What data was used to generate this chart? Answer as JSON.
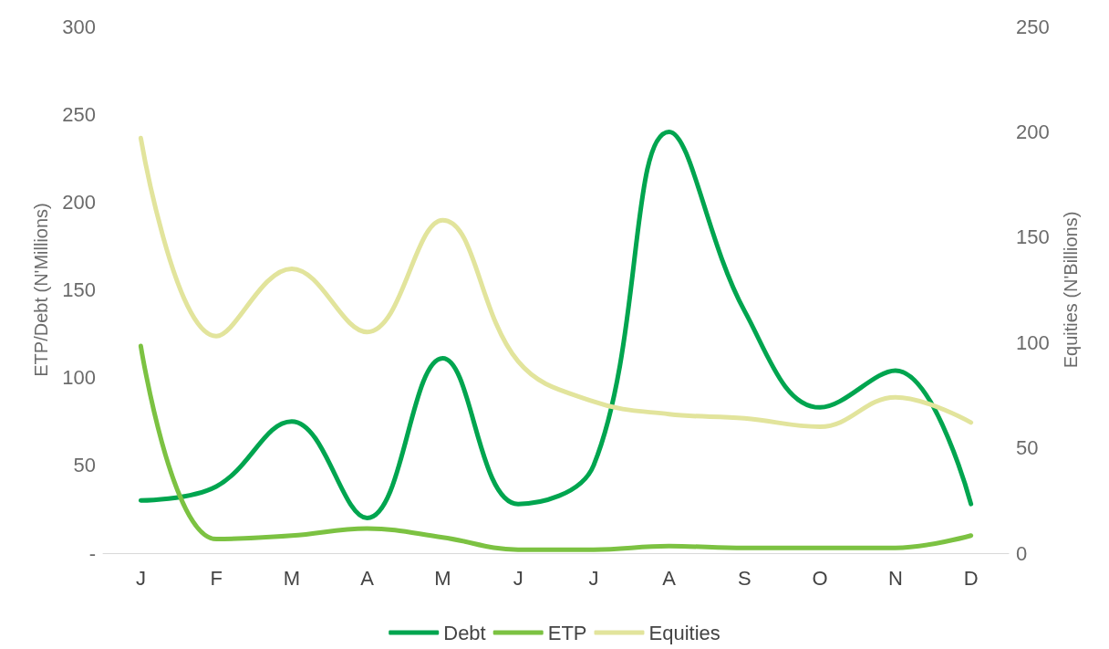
{
  "chart_data": {
    "type": "line",
    "ylabel": "ETP/Debt (N'Millions)",
    "y2label": "Equities (N'Billions)",
    "categories": [
      "J",
      "F",
      "M",
      "A",
      "M",
      "J",
      "J",
      "A",
      "S",
      "O",
      "N",
      "D"
    ],
    "series": [
      {
        "name": "Debt",
        "color": "#00a54f",
        "values": [
          30,
          38,
          75,
          20,
          111,
          28,
          50,
          240,
          138,
          83,
          104,
          28
        ]
      },
      {
        "name": "ETP",
        "color": "#7cc242",
        "values": [
          118,
          8,
          10,
          14,
          9,
          2,
          2,
          4,
          3,
          3,
          3,
          10
        ]
      },
      {
        "name": "Equities",
        "color": "#e2e49c",
        "axis": "y2",
        "values": [
          197,
          103,
          135,
          105,
          158,
          91,
          72,
          66,
          64,
          60,
          74,
          62
        ]
      }
    ],
    "ylim": [
      0,
      300
    ],
    "yticks": [
      {
        "value": 0,
        "label": "-"
      },
      50,
      100,
      150,
      200,
      250,
      300
    ],
    "y2lim": [
      0,
      250
    ],
    "y2ticks": [
      0,
      50,
      100,
      150,
      200,
      250
    ],
    "grid": false,
    "legend": "bottom",
    "marker": "none",
    "line_style": "solid"
  }
}
